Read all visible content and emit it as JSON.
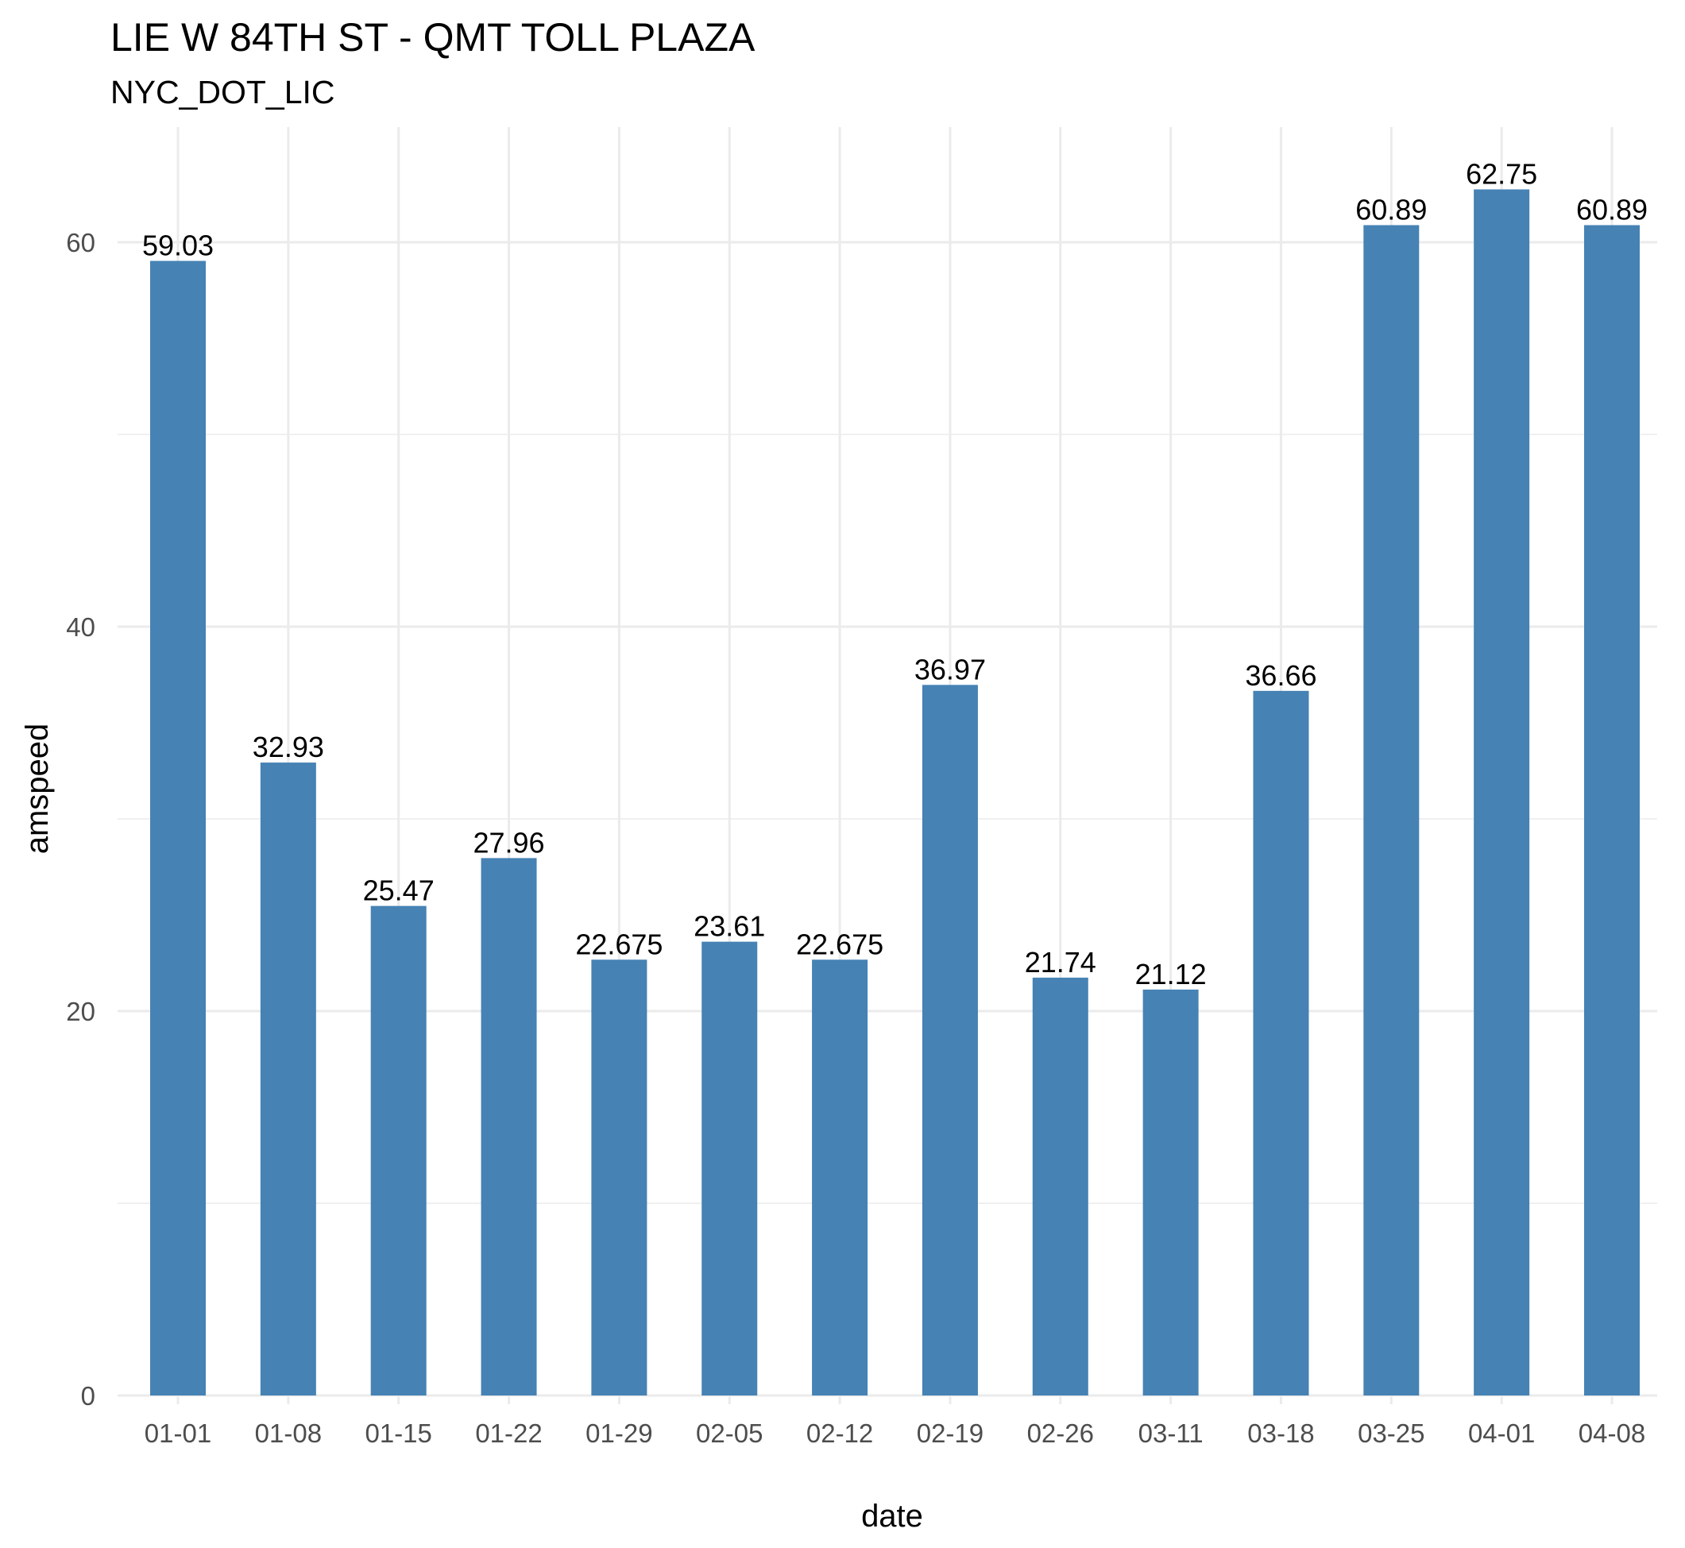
{
  "chart_data": {
    "type": "bar",
    "title": "LIE W 84TH ST - QMT TOLL PLAZA",
    "subtitle": "NYC_DOT_LIC",
    "xlabel": "date",
    "ylabel": "amspeed",
    "categories": [
      "01-01",
      "01-08",
      "01-15",
      "01-22",
      "01-29",
      "02-05",
      "02-12",
      "02-19",
      "02-26",
      "03-11",
      "03-18",
      "03-25",
      "04-01",
      "04-08"
    ],
    "values": [
      59.03,
      32.93,
      25.47,
      27.96,
      22.675,
      23.61,
      22.675,
      36.97,
      21.74,
      21.12,
      36.66,
      60.89,
      62.75,
      60.89
    ],
    "data_labels": [
      "59.03",
      "32.93",
      "25.47",
      "27.96",
      "22.675",
      "23.61",
      "22.675",
      "36.97",
      "21.74",
      "21.12",
      "36.66",
      "60.89",
      "62.75",
      "60.89"
    ],
    "ylim": [
      0,
      65.5
    ],
    "yticks": [
      0,
      20,
      40,
      60
    ],
    "yminor": [
      10,
      30,
      50
    ],
    "grid": true,
    "legend": "none",
    "bar_color": "#4682b4"
  }
}
